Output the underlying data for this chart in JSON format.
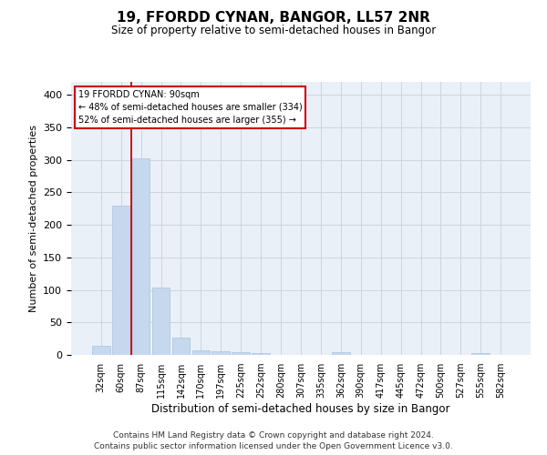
{
  "title1": "19, FFORDD CYNAN, BANGOR, LL57 2NR",
  "title2": "Size of property relative to semi-detached houses in Bangor",
  "xlabel": "Distribution of semi-detached houses by size in Bangor",
  "ylabel": "Number of semi-detached properties",
  "categories": [
    "32sqm",
    "60sqm",
    "87sqm",
    "115sqm",
    "142sqm",
    "170sqm",
    "197sqm",
    "225sqm",
    "252sqm",
    "280sqm",
    "307sqm",
    "335sqm",
    "362sqm",
    "390sqm",
    "417sqm",
    "445sqm",
    "472sqm",
    "500sqm",
    "527sqm",
    "555sqm",
    "582sqm"
  ],
  "values": [
    14,
    230,
    303,
    103,
    27,
    7,
    6,
    4,
    3,
    0,
    0,
    0,
    4,
    0,
    0,
    0,
    0,
    0,
    0,
    3,
    0
  ],
  "bar_color": "#c5d8ed",
  "bar_edge_color": "#a8c4dc",
  "property_label": "19 FFORDD CYNAN: 90sqm",
  "smaller_pct": "48% of semi-detached houses are smaller (334)",
  "larger_pct": "52% of semi-detached houses are larger (355)",
  "annotation_box_color": "#ffffff",
  "annotation_box_edge": "#cc0000",
  "vline_color": "#cc0000",
  "grid_color": "#ccd5e0",
  "background_color": "#eaf0f8",
  "ylim": [
    0,
    420
  ],
  "yticks": [
    0,
    50,
    100,
    150,
    200,
    250,
    300,
    350,
    400
  ],
  "footer": "Contains HM Land Registry data © Crown copyright and database right 2024.\nContains public sector information licensed under the Open Government Licence v3.0."
}
